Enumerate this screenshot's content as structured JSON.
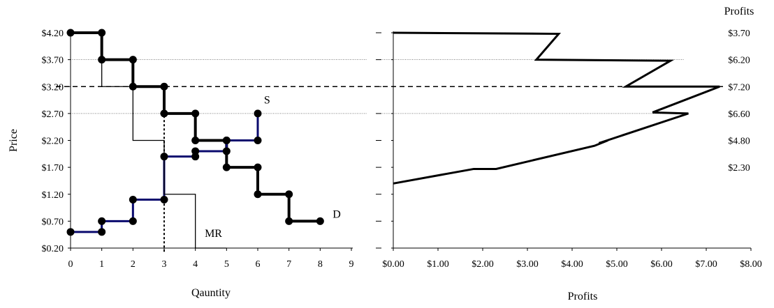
{
  "chart_data": [
    {
      "type": "line",
      "xlabel": "Qauntity",
      "ylabel": "Price",
      "xlim": [
        0,
        9
      ],
      "ylim": [
        0.2,
        4.2
      ],
      "x_ticks": [
        "0",
        "1",
        "2",
        "3",
        "4",
        "5",
        "6",
        "7",
        "8",
        "9"
      ],
      "y_ticks": [
        "$0.20",
        "$0.70",
        "$1.20",
        "$1.70",
        "$2.20",
        "$2.70",
        "$3.20",
        "$3.70",
        "$4.20"
      ],
      "series": [
        {
          "name": "D",
          "points": [
            [
              0,
              4.2
            ],
            [
              1,
              4.2
            ],
            [
              1,
              3.7
            ],
            [
              2,
              3.7
            ],
            [
              2,
              3.2
            ],
            [
              3,
              3.2
            ],
            [
              3,
              2.7
            ],
            [
              4,
              2.7
            ],
            [
              4,
              2.2
            ],
            [
              5,
              2.2
            ],
            [
              5,
              1.7
            ],
            [
              6,
              1.7
            ],
            [
              6,
              1.2
            ],
            [
              7,
              1.2
            ],
            [
              7,
              0.7
            ],
            [
              8,
              0.7
            ]
          ]
        },
        {
          "name": "S",
          "points": [
            [
              0,
              0.5
            ],
            [
              1,
              0.5
            ],
            [
              1,
              0.7
            ],
            [
              2,
              0.7
            ],
            [
              2,
              1.1
            ],
            [
              3,
              1.1
            ],
            [
              3,
              1.9
            ],
            [
              4,
              1.9
            ],
            [
              4,
              2.0
            ],
            [
              5,
              2.0
            ],
            [
              5,
              2.2
            ],
            [
              6,
              2.2
            ],
            [
              6,
              2.7
            ]
          ]
        },
        {
          "name": "MR",
          "points": [
            [
              1,
              4.2
            ],
            [
              1,
              3.2
            ],
            [
              2,
              3.2
            ],
            [
              2,
              2.2
            ],
            [
              3,
              2.2
            ],
            [
              3,
              1.2
            ],
            [
              4,
              1.2
            ],
            [
              4,
              0.2
            ],
            [
              5,
              0.2
            ]
          ]
        }
      ],
      "annotations": {
        "price_line": 3.2,
        "quantity_line": 3,
        "reference_prices": [
          3.7,
          2.7
        ]
      }
    },
    {
      "type": "line",
      "xlabel": "Profits",
      "xlim": [
        0,
        8
      ],
      "ylim": [
        0.2,
        4.2
      ],
      "x_ticks": [
        "$0.00",
        "$1.00",
        "$2.00",
        "$3.00",
        "$4.00",
        "$5.00",
        "$6.00",
        "$7.00",
        "$8.00"
      ],
      "right_axis_title": "Profits",
      "right_labels": [
        "$3.70",
        "$6.20",
        "$7.20",
        "$6.60",
        "$4.80",
        "$2.30"
      ],
      "points": [
        [
          0,
          4.2
        ],
        [
          3.7,
          4.18
        ],
        [
          3.2,
          3.7
        ],
        [
          6.2,
          3.68
        ],
        [
          5.2,
          3.2
        ],
        [
          7.3,
          3.2
        ],
        [
          5.8,
          2.72
        ],
        [
          6.6,
          2.7
        ],
        [
          4.6,
          2.15
        ],
        [
          4.8,
          2.2
        ],
        [
          4.5,
          2.1
        ],
        [
          2.3,
          1.67
        ],
        [
          1.8,
          1.67
        ],
        [
          0,
          1.4
        ]
      ],
      "price_line": 3.2,
      "reference_prices": [
        3.7,
        2.7
      ]
    }
  ],
  "labels": {
    "supply": "S",
    "demand": "D",
    "marginal_revenue": "MR"
  },
  "colors": {
    "demand": "#000000",
    "supply": "#0a0a6e",
    "mr": "#000000",
    "markers": "#000000"
  }
}
